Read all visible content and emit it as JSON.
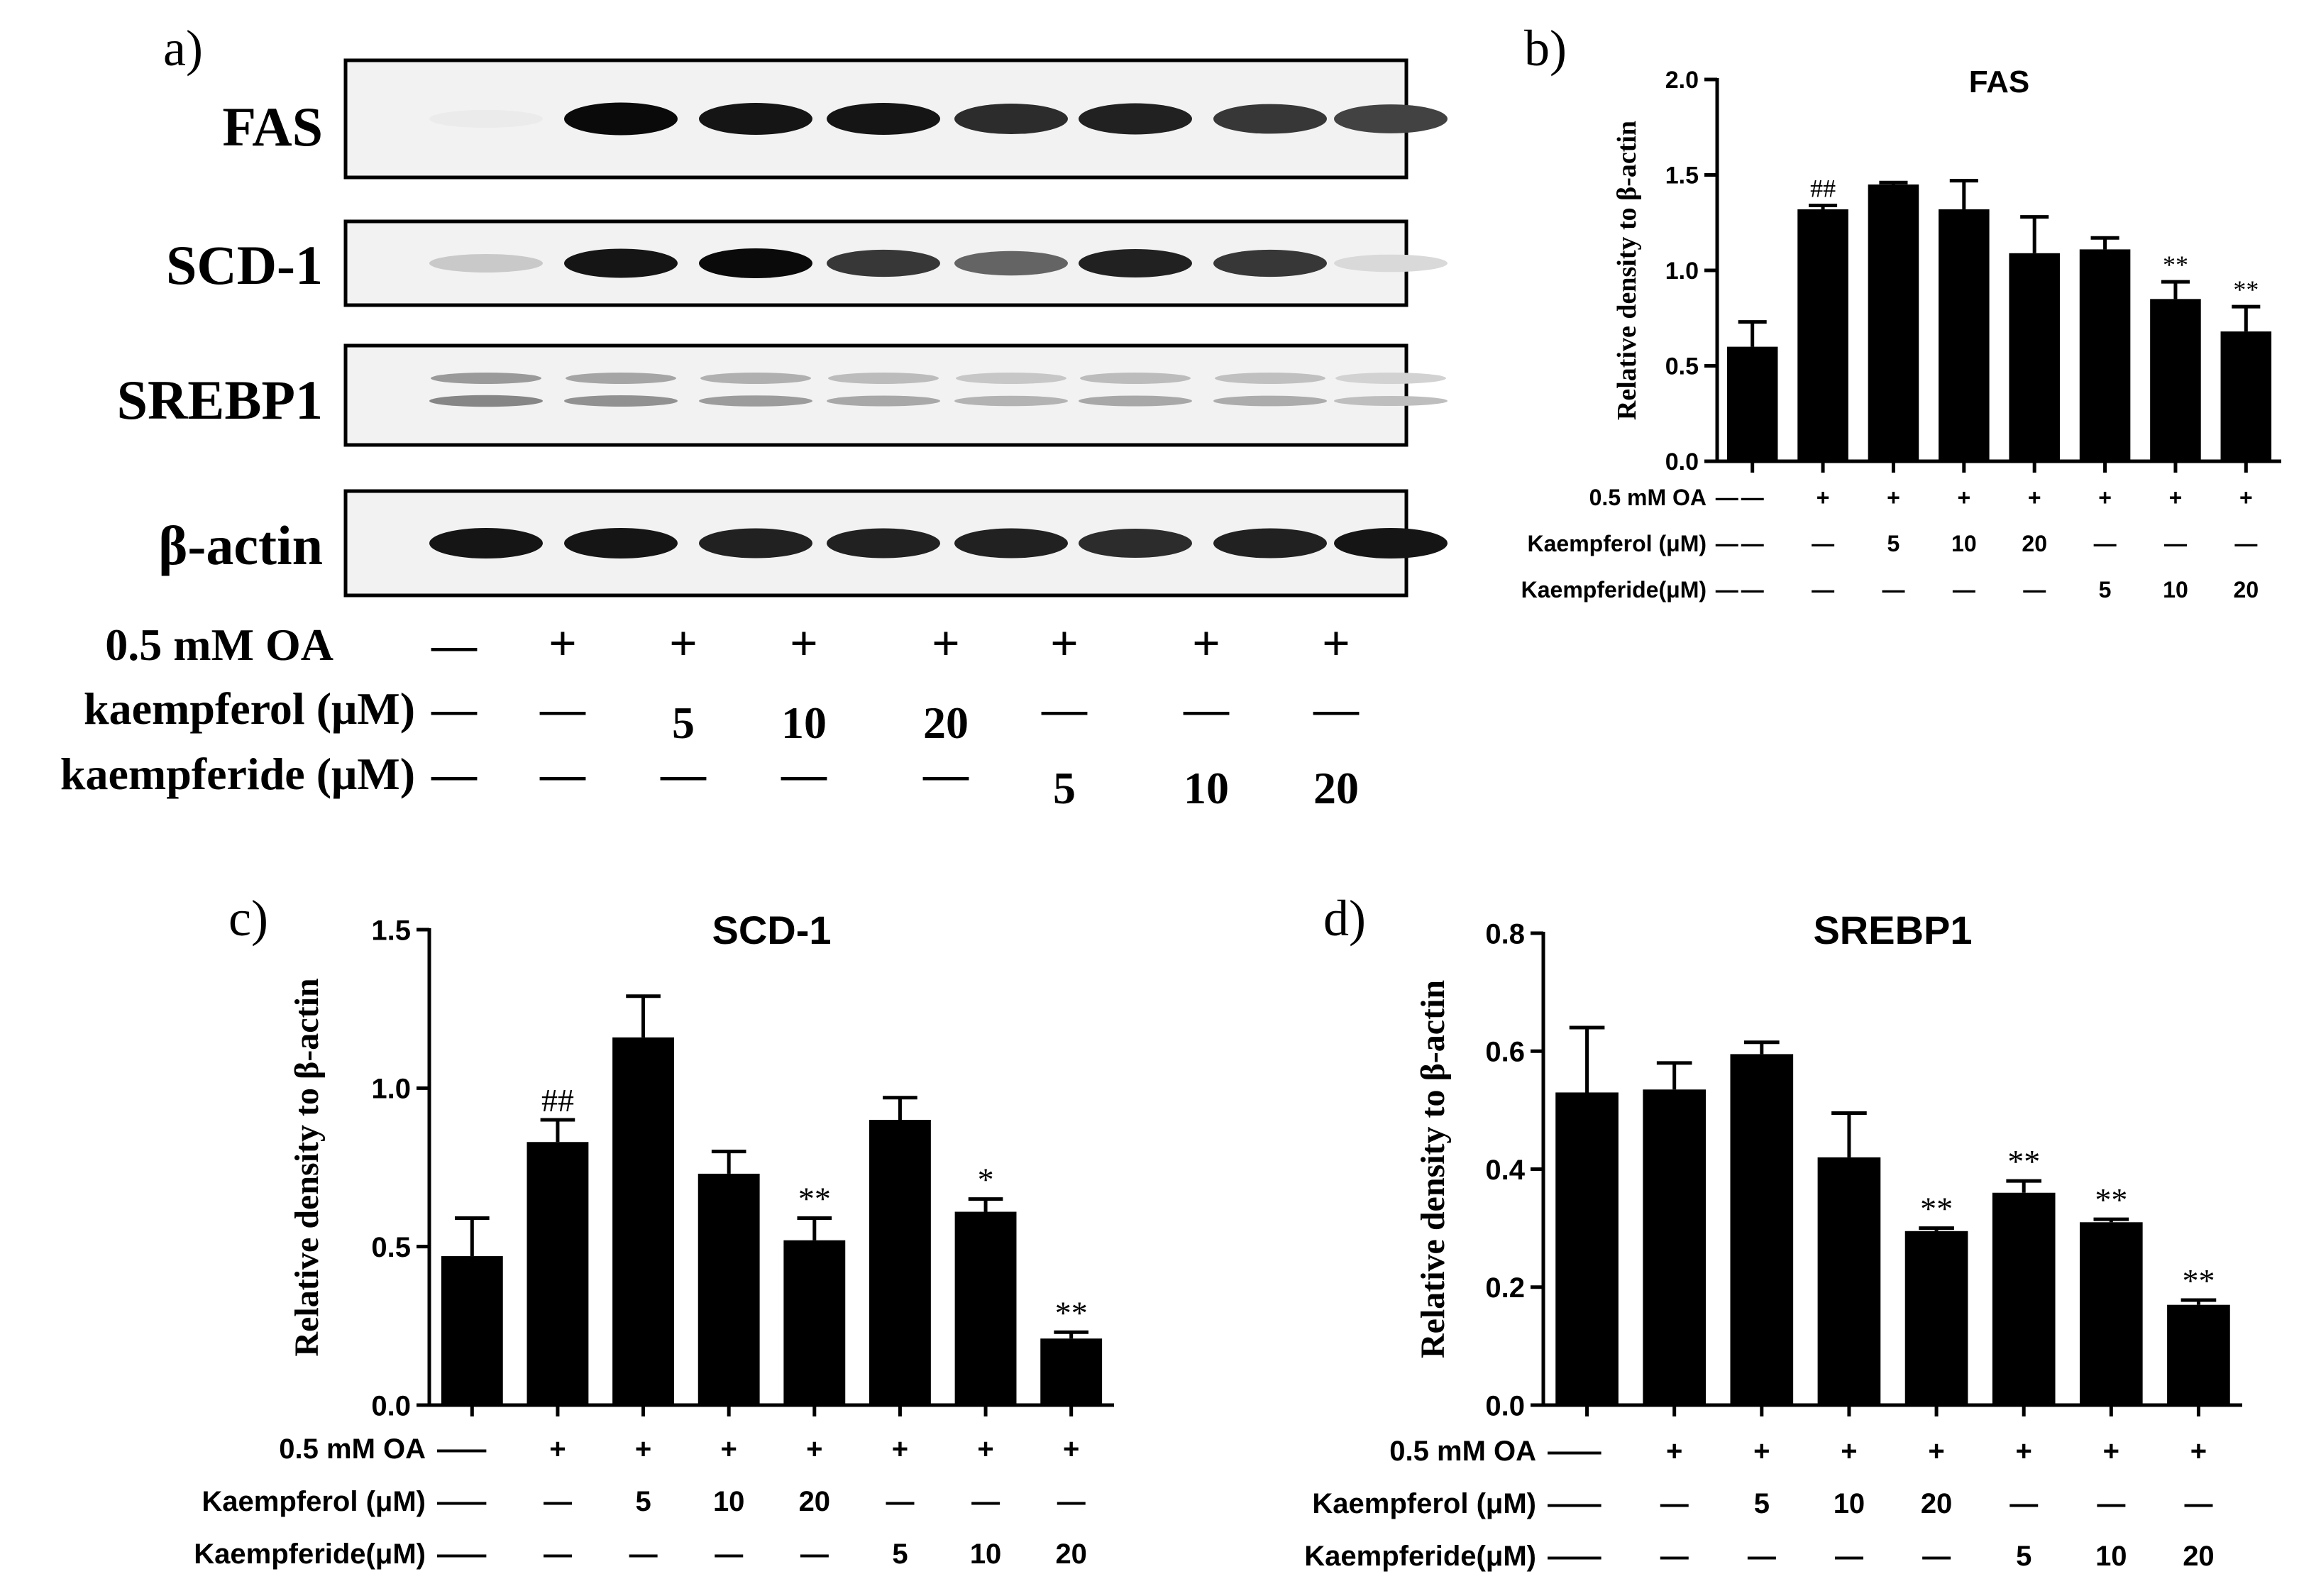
{
  "blot": {
    "panel_letter": "a)",
    "protein_labels": [
      "FAS",
      "SCD-1",
      "SREBP1",
      "β-actin"
    ],
    "treatment_rows": [
      {
        "label": "0.5 mM OA",
        "values": [
          "—",
          "+",
          "+",
          "+",
          "+",
          "+",
          "+",
          "+"
        ]
      },
      {
        "label": "kaempferol (μM)",
        "values": [
          "—",
          "—",
          "5",
          "10",
          "20",
          "—",
          "—",
          "—"
        ]
      },
      {
        "label": "kaempferide (μM)",
        "values": [
          "—",
          "—",
          "—",
          "—",
          "—",
          "5",
          "10",
          "20"
        ]
      }
    ],
    "band_intensity": {
      "FAS": [
        0.0,
        1.0,
        0.95,
        0.95,
        0.85,
        0.9,
        0.8,
        0.75
      ],
      "SCD-1": [
        0.15,
        0.95,
        1.0,
        0.8,
        0.6,
        0.9,
        0.8,
        0.08
      ],
      "SREBP1": [
        0.45,
        0.4,
        0.35,
        0.3,
        0.25,
        0.3,
        0.28,
        0.2
      ],
      "β-actin": [
        0.95,
        0.95,
        0.9,
        0.9,
        0.9,
        0.85,
        0.9,
        0.95
      ]
    }
  },
  "treatment_table": {
    "rows": [
      {
        "label": "0.5 mM OA",
        "values": [
          "—",
          "+",
          "+",
          "+",
          "+",
          "+",
          "+",
          "+"
        ]
      },
      {
        "label": "Kaempferol (μM)",
        "values": [
          "—",
          "—",
          "5",
          "10",
          "20",
          "—",
          "—",
          "—"
        ]
      },
      {
        "label": "Kaempferide(μM)",
        "values": [
          "—",
          "—",
          "—",
          "—",
          "—",
          "5",
          "10",
          "20"
        ]
      }
    ]
  },
  "chart_data": [
    {
      "panel": "b)",
      "type": "bar",
      "title": "FAS",
      "ylabel": "Relative density to β-actin",
      "ylim": [
        0,
        2.0
      ],
      "yticks": [
        "0.0",
        "0.5",
        "1.0",
        "1.5",
        "2.0"
      ],
      "values": [
        0.6,
        1.32,
        1.45,
        1.32,
        1.09,
        1.11,
        0.85,
        0.68
      ],
      "errors": [
        0.13,
        0.02,
        0.01,
        0.15,
        0.19,
        0.06,
        0.09,
        0.13
      ],
      "annotations": [
        "",
        "##",
        "",
        "",
        "",
        "",
        "**",
        "**"
      ]
    },
    {
      "panel": "c)",
      "type": "bar",
      "title": "SCD-1",
      "ylabel": "Relative density to β-actin",
      "ylim": [
        0,
        1.5
      ],
      "yticks": [
        "0.0",
        "0.5",
        "1.0",
        "1.5"
      ],
      "values": [
        0.47,
        0.83,
        1.16,
        0.73,
        0.52,
        0.9,
        0.61,
        0.21
      ],
      "errors": [
        0.12,
        0.07,
        0.13,
        0.07,
        0.07,
        0.07,
        0.04,
        0.02
      ],
      "annotations": [
        "",
        "##",
        "",
        "",
        "**",
        "",
        "*",
        "**"
      ]
    },
    {
      "panel": "d)",
      "type": "bar",
      "title": "SREBP1",
      "ylabel": "Relative density to β-actin",
      "ylim": [
        0,
        0.8
      ],
      "yticks": [
        "0.0",
        "0.2",
        "0.4",
        "0.6",
        "0.8"
      ],
      "values": [
        0.53,
        0.535,
        0.595,
        0.42,
        0.295,
        0.36,
        0.31,
        0.17
      ],
      "errors": [
        0.11,
        0.045,
        0.02,
        0.075,
        0.005,
        0.02,
        0.005,
        0.008
      ],
      "annotations": [
        "",
        "",
        "",
        "",
        "**",
        "**",
        "**",
        "**"
      ]
    }
  ],
  "colors": {
    "bar": "#000000",
    "axis": "#000000",
    "text": "#000000"
  }
}
